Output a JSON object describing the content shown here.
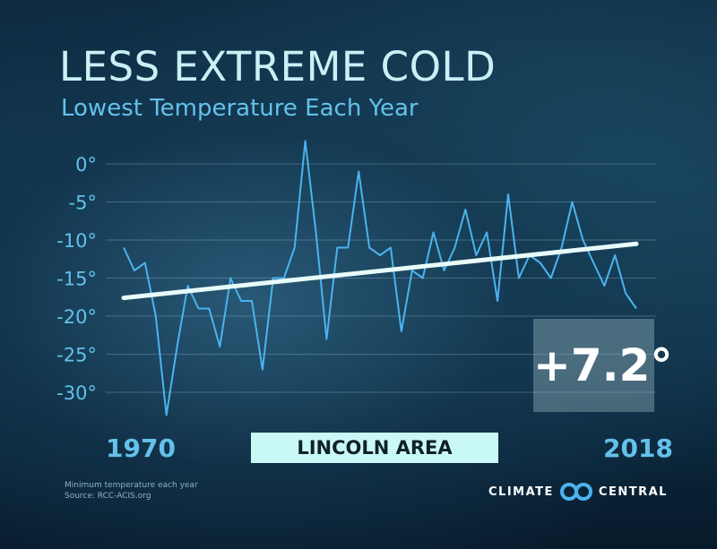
{
  "title": "LESS EXTREME COLD",
  "subtitle": "Lowest Temperature Each Year",
  "location_label": "LINCOLN AREA",
  "change_label": "+7.2°",
  "footnote": {
    "line1": "Minimum temperature each year",
    "line2": "Source: RCC-ACIS.org"
  },
  "logo": {
    "left_text": "CLIMATE",
    "right_text": "CENTRAL",
    "icon": "climate-central-rings-icon"
  },
  "colors": {
    "series": "#4ab4ee",
    "trend": "#e8fbf9",
    "title": "#c8f1f6",
    "accent": "#64c1ea",
    "label_bar": "#c9f9f7"
  },
  "chart_data": {
    "type": "line",
    "title": "LESS EXTREME COLD",
    "subtitle": "Lowest Temperature Each Year",
    "x_start_label": "1970",
    "x_end_label": "2018",
    "xlim": [
      1970,
      2018
    ],
    "ylim": [
      -33,
      3
    ],
    "y_ticks": [
      0,
      -5,
      -10,
      -15,
      -20,
      -25,
      -30
    ],
    "y_tick_labels": [
      "0°",
      "-5°",
      "-10°",
      "-15°",
      "-20°",
      "-25°",
      "-30°"
    ],
    "grid": true,
    "series": [
      {
        "x": [
          1970,
          1971,
          1972,
          1973,
          1974,
          1975,
          1976,
          1977,
          1978,
          1979,
          1980,
          1981,
          1982,
          1983,
          1984,
          1985,
          1986,
          1987,
          1988,
          1989,
          1990,
          1991,
          1992,
          1993,
          1994,
          1995,
          1996,
          1997,
          1998,
          1999,
          2000,
          2001,
          2002,
          2003,
          2004,
          2005,
          2006,
          2007,
          2008,
          2009,
          2010,
          2011,
          2012,
          2013,
          2014,
          2015,
          2016,
          2017,
          2018
        ],
        "values": [
          -11,
          -14,
          -13,
          -20,
          -33,
          -24,
          -16,
          -19,
          -19,
          -24,
          -15,
          -18,
          -18,
          -27,
          -15,
          -15,
          -11,
          3,
          -9,
          -23,
          -11,
          -11,
          -1,
          -11,
          -12,
          -11,
          -22,
          -14,
          -15,
          -9,
          -14,
          -11,
          -6,
          -12,
          -9,
          -18,
          -4,
          -15,
          -12,
          -13,
          -15,
          -11,
          -5,
          -10,
          -13,
          -16,
          -12,
          -17,
          -19
        ]
      },
      {
        "type": "trend",
        "x": [
          1970,
          2018
        ],
        "values": [
          -17.6,
          -10.5
        ]
      }
    ]
  }
}
